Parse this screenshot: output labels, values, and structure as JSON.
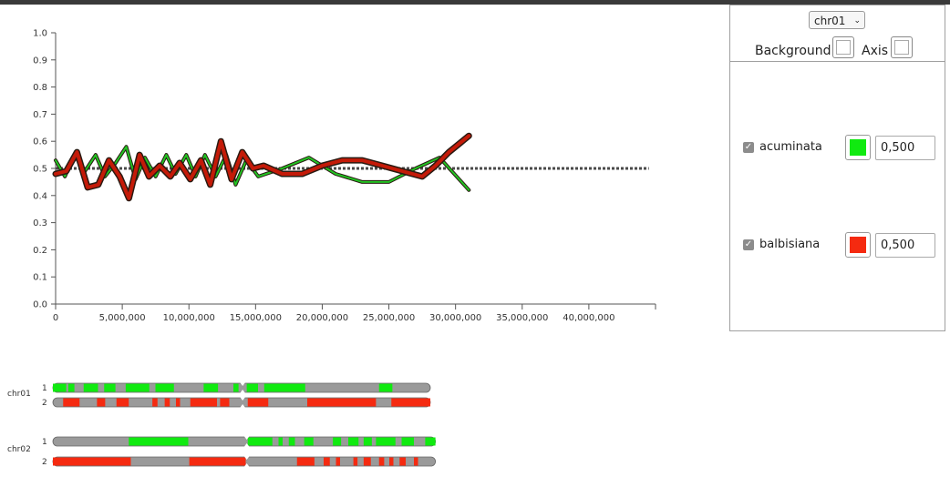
{
  "chart_data": {
    "type": "line",
    "xlim": [
      0,
      45000000
    ],
    "ylim": [
      0,
      1
    ],
    "x_ticks": [
      "0",
      "5,000,000",
      "10,000,000",
      "15,000,000",
      "20,000,000",
      "25,000,000",
      "30,000,000",
      "35,000,000",
      "40,000,000"
    ],
    "y_ticks": [
      "0.0",
      "0.1",
      "0.2",
      "0.3",
      "0.4",
      "0.5",
      "0.6",
      "0.7",
      "0.8",
      "0.9",
      "1.0"
    ],
    "reference_line": {
      "y": 0.5,
      "x_start": 0,
      "x_end": 44500000,
      "style": "dotted",
      "color": "#4a4a4a"
    },
    "series": [
      {
        "name": "acuminata",
        "color": "#22c422",
        "x": [
          0,
          700000,
          1400000,
          2200000,
          3000000,
          3700000,
          4500000,
          5300000,
          6000000,
          6700000,
          7500000,
          8300000,
          9000000,
          9800000,
          10500000,
          11200000,
          12000000,
          12800000,
          13500000,
          14300000,
          15200000,
          17000000,
          19000000,
          21000000,
          23000000,
          25000000,
          27000000,
          28800000,
          31000000
        ],
        "values": [
          0.53,
          0.47,
          0.55,
          0.49,
          0.55,
          0.47,
          0.52,
          0.58,
          0.46,
          0.54,
          0.47,
          0.55,
          0.48,
          0.55,
          0.47,
          0.55,
          0.47,
          0.55,
          0.44,
          0.53,
          0.47,
          0.5,
          0.54,
          0.48,
          0.45,
          0.45,
          0.5,
          0.54,
          0.42
        ]
      },
      {
        "name": "balbisiana",
        "color": "#c41a08",
        "x": [
          0,
          800000,
          1600000,
          2400000,
          3200000,
          4000000,
          4800000,
          5500000,
          6300000,
          7000000,
          7800000,
          8600000,
          9300000,
          10100000,
          10900000,
          11600000,
          12400000,
          13200000,
          14000000,
          14800000,
          15600000,
          17000000,
          18500000,
          20000000,
          21500000,
          23000000,
          24500000,
          26000000,
          27500000,
          28500000,
          29500000,
          30500000,
          31000000
        ],
        "values": [
          0.48,
          0.49,
          0.56,
          0.43,
          0.44,
          0.53,
          0.47,
          0.39,
          0.55,
          0.47,
          0.51,
          0.47,
          0.52,
          0.46,
          0.53,
          0.44,
          0.6,
          0.46,
          0.56,
          0.5,
          0.51,
          0.48,
          0.48,
          0.51,
          0.53,
          0.53,
          0.51,
          0.49,
          0.47,
          0.51,
          0.56,
          0.6,
          0.62
        ]
      }
    ]
  },
  "panel": {
    "chromosome_select": "chr01",
    "background_label": "Background",
    "axis_label": "Axis",
    "series": [
      {
        "name": "acuminata",
        "color": "#10ea10",
        "value": "0,500",
        "checked": true
      },
      {
        "name": "balbisiana",
        "color": "#f52a10",
        "value": "0,500",
        "checked": true
      }
    ]
  },
  "chromosomes": {
    "neutral_color": "#9a9a9a",
    "acuminata_color": "#10ea10",
    "balbisiana_color": "#f52a10",
    "items": [
      {
        "name": "chr01",
        "length": 36800000,
        "centromere": 18500000,
        "tracks": [
          {
            "label": "1",
            "color": "#10ea10",
            "segments": [
              [
                0,
                1300000
              ],
              [
                1500000,
                2100000
              ],
              [
                3000000,
                4400000
              ],
              [
                5000000,
                6100000
              ],
              [
                7100000,
                9400000
              ],
              [
                10000000,
                11800000
              ],
              [
                14700000,
                16100000
              ],
              [
                17600000,
                18100000
              ],
              [
                18900000,
                20000000
              ],
              [
                20600000,
                24600000
              ],
              [
                31800000,
                33100000
              ]
            ]
          },
          {
            "label": "2",
            "color": "#f52a10",
            "segments": [
              [
                1000000,
                2600000
              ],
              [
                4300000,
                5100000
              ],
              [
                6200000,
                7400000
              ],
              [
                9700000,
                10200000
              ],
              [
                10900000,
                11400000
              ],
              [
                12000000,
                12400000
              ],
              [
                13400000,
                16000000
              ],
              [
                16300000,
                17200000
              ],
              [
                19000000,
                21000000
              ],
              [
                24800000,
                31500000
              ],
              [
                33000000,
                36800000
              ]
            ]
          }
        ]
      },
      {
        "name": "chr02",
        "length": 37300000,
        "centromere": 18900000,
        "tracks": [
          {
            "label": "1",
            "color": "#10ea10",
            "segments": [
              [
                7400000,
                13200000
              ],
              [
                19000000,
                21400000
              ],
              [
                22000000,
                22400000
              ],
              [
                23000000,
                23600000
              ],
              [
                24500000,
                25400000
              ],
              [
                27300000,
                28100000
              ],
              [
                28800000,
                29800000
              ],
              [
                30300000,
                31100000
              ],
              [
                31500000,
                33400000
              ],
              [
                34000000,
                35200000
              ],
              [
                36300000,
                37300000
              ]
            ]
          },
          {
            "label": "2",
            "color": "#f52a10",
            "segments": [
              [
                0,
                7600000
              ],
              [
                13300000,
                18800000
              ],
              [
                23800000,
                25500000
              ],
              [
                26400000,
                27000000
              ],
              [
                27600000,
                28000000
              ],
              [
                29300000,
                29700000
              ],
              [
                30300000,
                31000000
              ],
              [
                31800000,
                32300000
              ],
              [
                32800000,
                33200000
              ],
              [
                33800000,
                34400000
              ],
              [
                35200000,
                35600000
              ]
            ]
          }
        ]
      }
    ]
  }
}
